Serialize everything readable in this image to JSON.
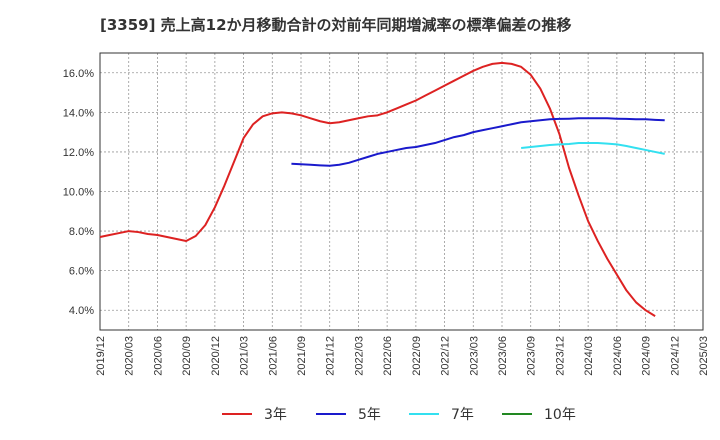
{
  "chart_data": {
    "type": "line",
    "title": "[3359]  売上高12か月移動合計の対前年同期増減率の標準偏差の推移",
    "xlabel": "",
    "ylabel": "",
    "ylim": [
      3.0,
      17.0
    ],
    "y_ticks": [
      "4.0%",
      "6.0%",
      "8.0%",
      "10.0%",
      "12.0%",
      "14.0%",
      "16.0%"
    ],
    "y_tick_values": [
      4,
      6,
      8,
      10,
      12,
      14,
      16
    ],
    "x_ticks": [
      "2019/12",
      "2020/03",
      "2020/06",
      "2020/09",
      "2020/12",
      "2021/03",
      "2021/06",
      "2021/09",
      "2021/12",
      "2022/03",
      "2022/06",
      "2022/09",
      "2022/12",
      "2023/03",
      "2023/06",
      "2023/09",
      "2023/12",
      "2024/03",
      "2024/06",
      "2024/09",
      "2024/12",
      "2025/03"
    ],
    "grid": true,
    "legend_position": "bottom",
    "series": [
      {
        "name": "3年",
        "color": "#dd2222",
        "start_month": 0,
        "values": [
          7.7,
          7.8,
          7.9,
          8.0,
          7.95,
          7.85,
          7.8,
          7.7,
          7.6,
          7.5,
          7.75,
          8.3,
          9.2,
          10.3,
          11.5,
          12.7,
          13.4,
          13.8,
          13.95,
          14.0,
          13.95,
          13.85,
          13.7,
          13.55,
          13.45,
          13.5,
          13.6,
          13.7,
          13.8,
          13.85,
          14.0,
          14.2,
          14.4,
          14.6,
          14.85,
          15.1,
          15.35,
          15.6,
          15.85,
          16.1,
          16.3,
          16.45,
          16.5,
          16.45,
          16.3,
          15.9,
          15.2,
          14.2,
          12.9,
          11.2,
          9.8,
          8.5,
          7.5,
          6.6,
          5.8,
          5.0,
          4.4,
          4.0,
          3.7
        ]
      },
      {
        "name": "5年",
        "color": "#1a1acc",
        "start_month": 20,
        "values": [
          11.4,
          11.38,
          11.35,
          11.32,
          11.3,
          11.35,
          11.45,
          11.6,
          11.75,
          11.9,
          12.0,
          12.1,
          12.2,
          12.25,
          12.35,
          12.45,
          12.6,
          12.75,
          12.85,
          13.0,
          13.1,
          13.2,
          13.3,
          13.4,
          13.5,
          13.55,
          13.6,
          13.65,
          13.67,
          13.68,
          13.7,
          13.7,
          13.7,
          13.7,
          13.68,
          13.67,
          13.65,
          13.65,
          13.62,
          13.6
        ]
      },
      {
        "name": "7年",
        "color": "#33e0f0",
        "start_month": 44,
        "values": [
          12.2,
          12.25,
          12.3,
          12.35,
          12.38,
          12.4,
          12.45,
          12.45,
          12.45,
          12.42,
          12.38,
          12.3,
          12.2,
          12.1,
          12.0,
          11.9
        ]
      },
      {
        "name": "10年",
        "color": "#228822",
        "start_month": null,
        "values": []
      }
    ]
  }
}
